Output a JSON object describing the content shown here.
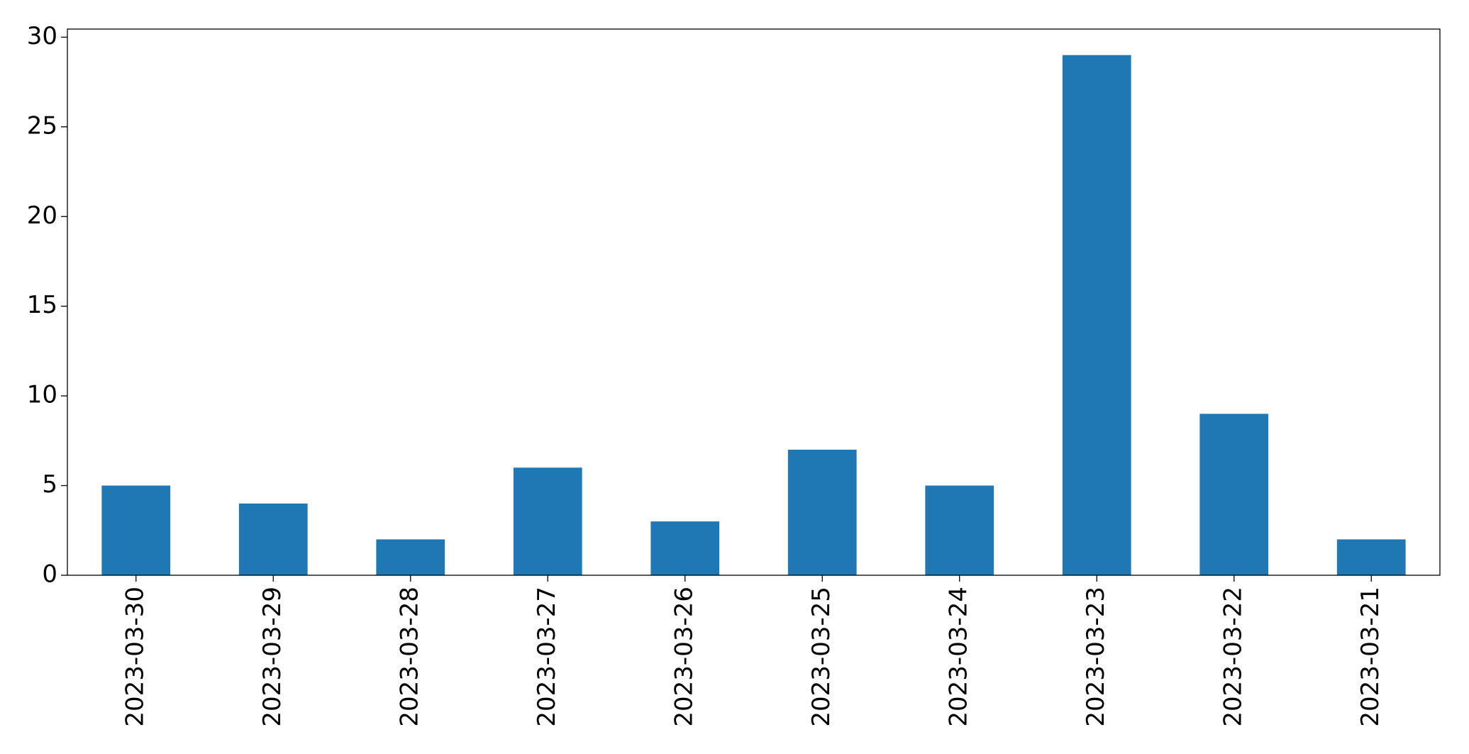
{
  "chart_data": {
    "type": "bar",
    "categories": [
      "2023-03-30",
      "2023-03-29",
      "2023-03-28",
      "2023-03-27",
      "2023-03-26",
      "2023-03-25",
      "2023-03-24",
      "2023-03-23",
      "2023-03-22",
      "2023-03-21"
    ],
    "values": [
      5,
      4,
      2,
      6,
      3,
      7,
      5,
      29,
      9,
      2
    ],
    "color": "#1f77b4",
    "ylim": [
      0,
      30.45
    ],
    "yticks": [
      0,
      5,
      10,
      15,
      20,
      25,
      30
    ],
    "grid": false
  }
}
